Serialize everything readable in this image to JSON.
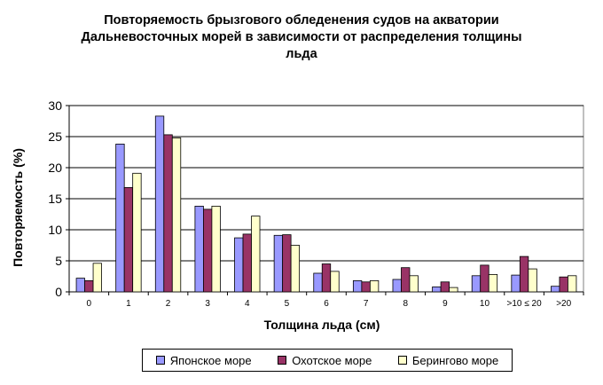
{
  "chart_data": {
    "type": "bar",
    "title_lines": [
      "Повторяемость брызгового обледенения судов на акватории",
      "Дальневосточных морей в зависимости от распределения толщины",
      "льда"
    ],
    "xlabel": "Толщина льда (см)",
    "ylabel": "Повторяемость (%)",
    "ylim": [
      0,
      30
    ],
    "yticks": [
      "0",
      "5",
      "10",
      "15",
      "20",
      "25",
      "30"
    ],
    "grid": true,
    "legend_position": "bottom",
    "categories": [
      "0",
      "1",
      "2",
      "3",
      "4",
      "5",
      "6",
      "7",
      "8",
      "9",
      "10",
      ">10 ≤ 20",
      ">20"
    ],
    "series": [
      {
        "name": "Японское море",
        "color": "#9999ff",
        "values": [
          2.2,
          23.8,
          28.3,
          13.8,
          8.7,
          9.1,
          3.0,
          1.8,
          2.0,
          0.8,
          2.6,
          2.7,
          0.9
        ]
      },
      {
        "name": "Охотское море",
        "color": "#993366",
        "values": [
          1.8,
          16.8,
          25.3,
          13.3,
          9.3,
          9.2,
          4.5,
          1.6,
          3.9,
          1.6,
          4.3,
          5.7,
          2.4
        ]
      },
      {
        "name": "Берингово море",
        "color": "#ffffcc",
        "values": [
          4.6,
          19.1,
          24.8,
          13.8,
          12.2,
          7.5,
          3.3,
          1.8,
          2.6,
          0.7,
          2.8,
          3.7,
          2.6
        ]
      }
    ]
  }
}
